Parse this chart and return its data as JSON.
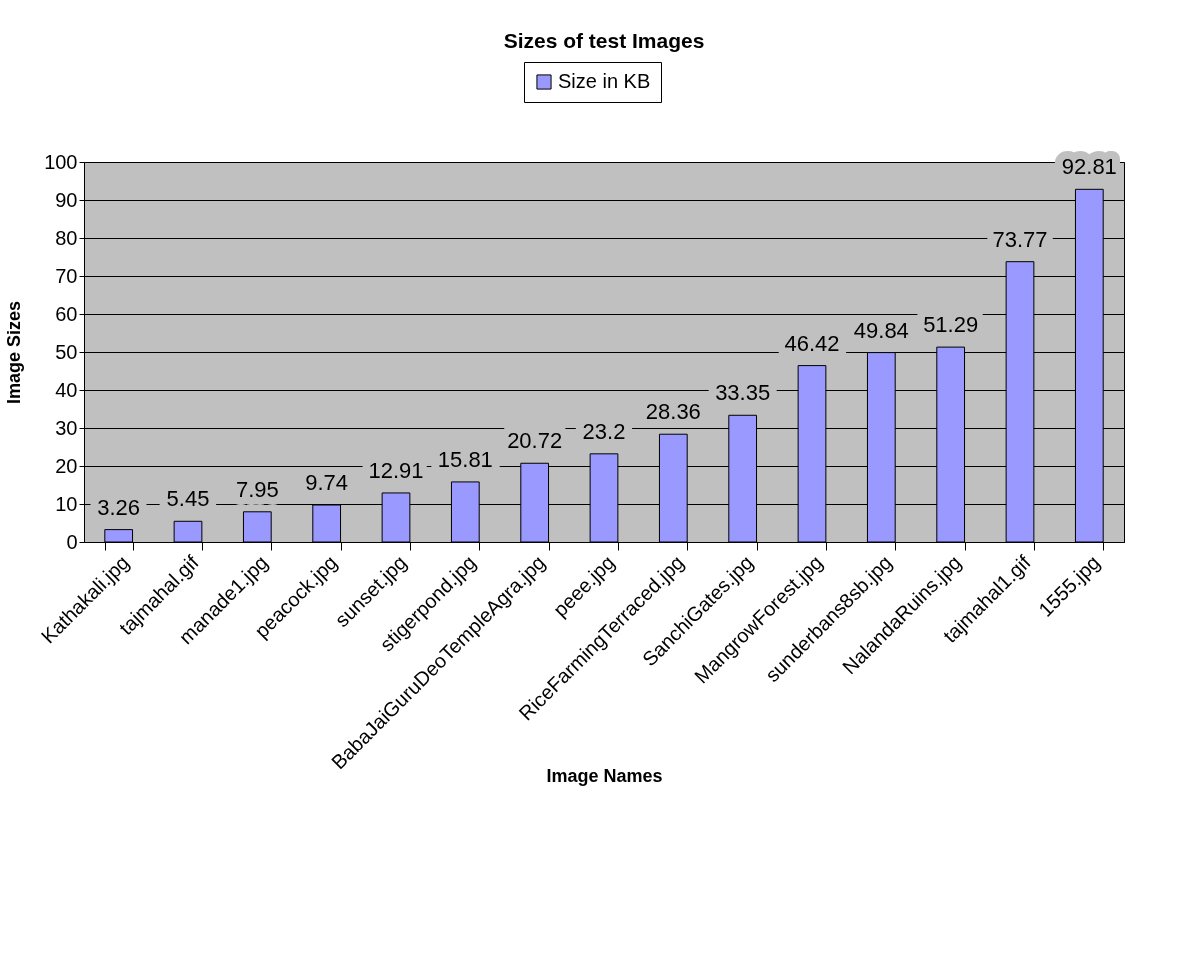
{
  "chart_data": {
    "type": "bar",
    "title": "Sizes of test Images",
    "xlabel": "Image Names",
    "ylabel": "Image Sizes",
    "categories": [
      "Kathakali.jpg",
      "tajmahal.gif",
      "manade1.jpg",
      "peacock.jpg",
      "sunset.jpg",
      "stigerpond.jpg",
      "BabaJaiGuruDeoTempleAgra.jpg",
      "peee.jpg",
      "RiceFarmingTerraced.jpg",
      "SanchiGates.jpg",
      "MangrowForest.jpg",
      "sunderbans8sb.jpg",
      "NalandaRuins.jpg",
      "tajmahal1.gif",
      "1555.jpg"
    ],
    "series": [
      {
        "name": "Size in KB",
        "color": "#9999ff",
        "values": [
          3.26,
          5.45,
          7.95,
          9.74,
          12.91,
          15.81,
          20.72,
          23.2,
          28.36,
          33.35,
          46.42,
          49.84,
          51.29,
          73.77,
          92.81
        ]
      }
    ],
    "ylim": [
      0,
      100
    ],
    "yticks": [
      0,
      10,
      20,
      30,
      40,
      50,
      60,
      70,
      80,
      90,
      100
    ],
    "grid": "y",
    "legend": "top",
    "data_labels": true
  }
}
